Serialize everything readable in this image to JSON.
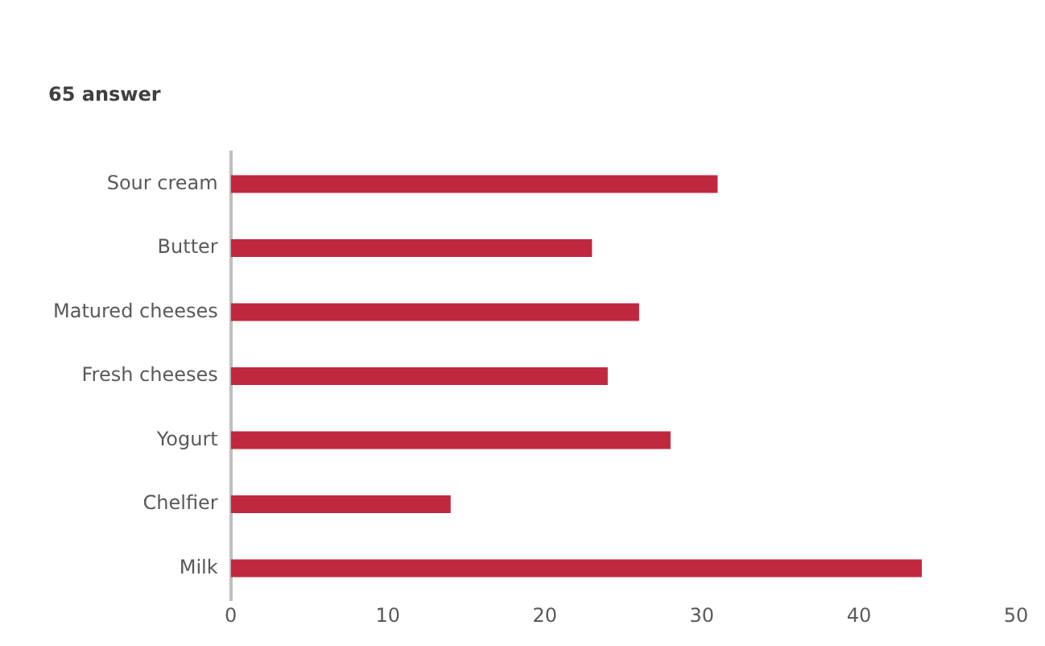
{
  "chart_data": {
    "type": "bar",
    "orientation": "horizontal",
    "title": "65 answer",
    "categories": [
      "Sour cream",
      "Butter",
      "Matured cheeses",
      "Fresh cheeses",
      "Yogurt",
      "Chelfier",
      "Milk"
    ],
    "values": [
      31,
      23,
      26,
      24,
      28,
      14,
      44
    ],
    "color": "#c0283f",
    "xlim": [
      0,
      50
    ],
    "xticks": [
      0,
      10,
      20,
      30,
      40,
      50
    ],
    "grid": false,
    "legend": false
  }
}
